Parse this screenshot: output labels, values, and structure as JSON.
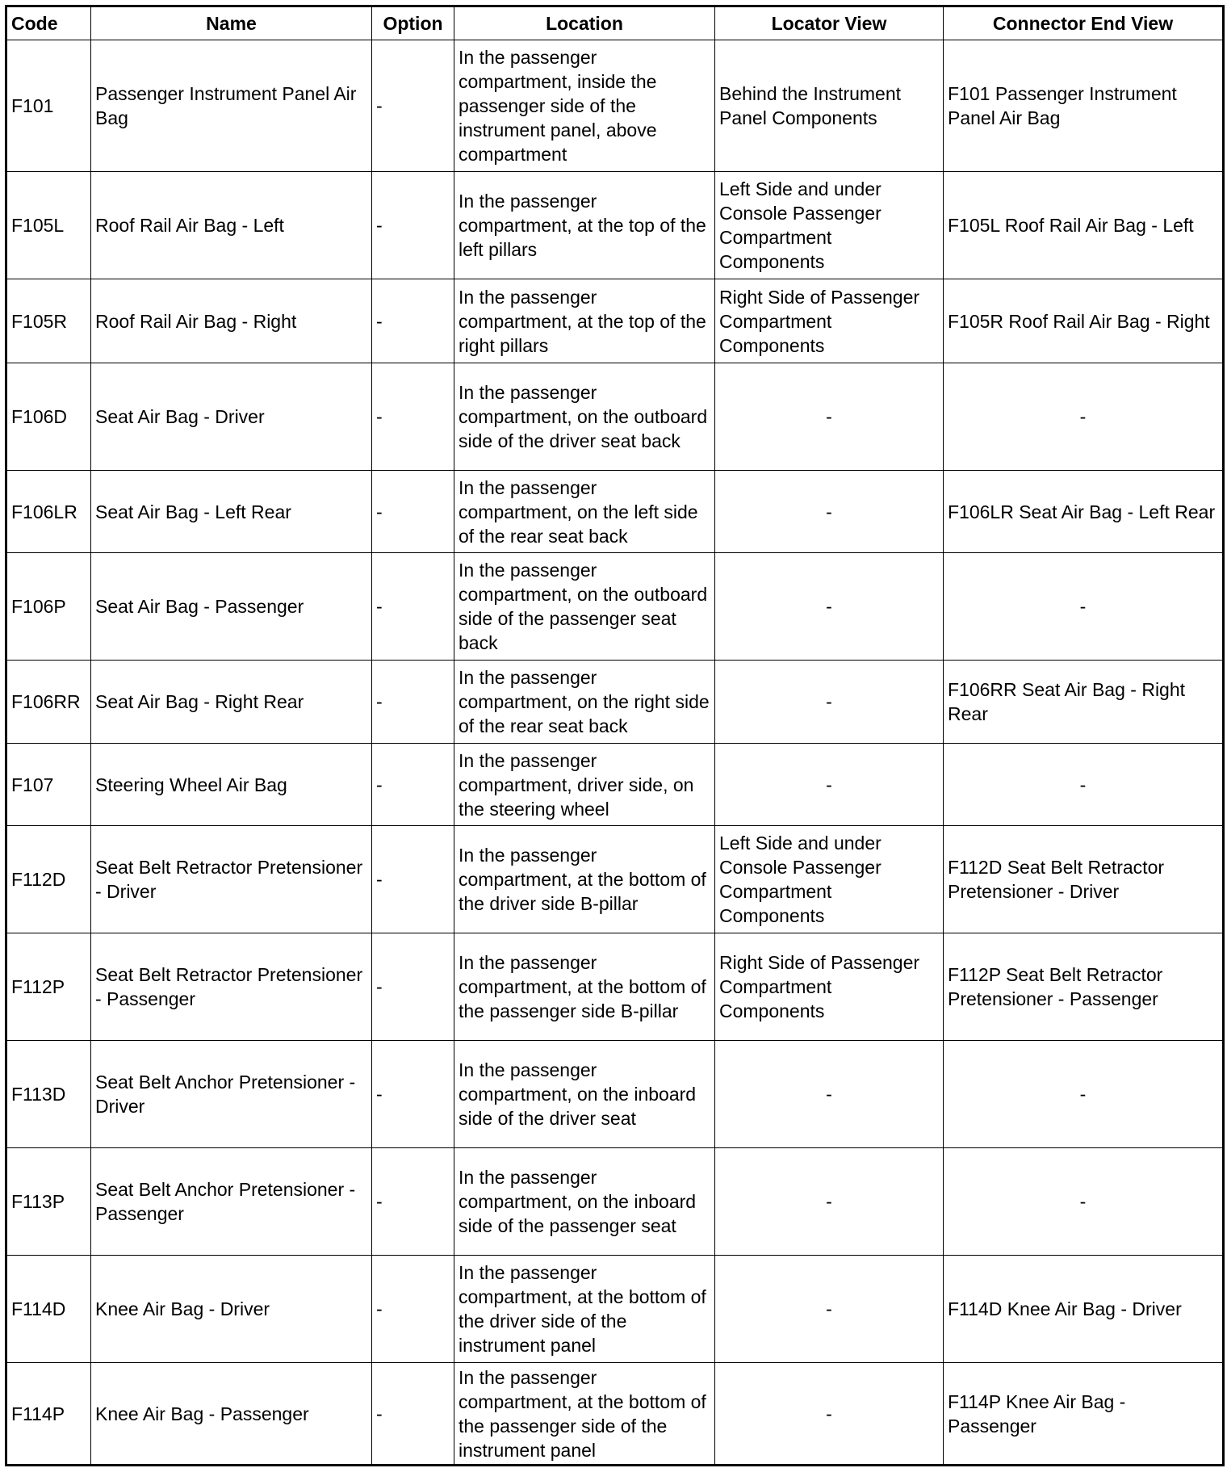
{
  "headers": [
    "Code",
    "Name",
    "Option",
    "Location",
    "Locator View",
    "Connector End View"
  ],
  "rows": [
    {
      "code": "F101",
      "name": "Passenger Instrument Panel Air Bag",
      "option": "-",
      "location": "In the passenger compartment, inside the passenger side of the instrument panel, above compartment",
      "locator": "Behind the Instrument Panel Components",
      "connector": "F101 Passenger Instrument Panel Air Bag"
    },
    {
      "code": "F105L",
      "name": "Roof Rail Air Bag - Left",
      "option": "-",
      "location": "In the passenger compartment, at the top of the left pillars",
      "locator": "Left Side and under Console Passenger Compartment Components",
      "connector": "F105L Roof Rail Air Bag - Left"
    },
    {
      "code": "F105R",
      "name": "Roof Rail Air Bag - Right",
      "option": "-",
      "location": "In the passenger compartment, at the top of the right pillars",
      "locator": "Right Side of Passenger Compartment Components",
      "connector": "F105R Roof Rail Air Bag - Right"
    },
    {
      "code": "F106D",
      "name": "Seat Air Bag - Driver",
      "option": "-",
      "location": "In the passenger compartment, on the outboard side of the driver seat back",
      "locator": "-",
      "connector": "-"
    },
    {
      "code": "F106LR",
      "name": "Seat Air Bag - Left Rear",
      "option": "-",
      "location": "In the passenger compartment, on the left side of the rear seat back",
      "locator": "-",
      "connector": "F106LR Seat Air Bag - Left Rear"
    },
    {
      "code": "F106P",
      "name": "Seat Air Bag - Passenger",
      "option": "-",
      "location": "In the passenger compartment, on the outboard side of the passenger seat back",
      "locator": "-",
      "connector": "-"
    },
    {
      "code": "F106RR",
      "name": "Seat Air Bag - Right Rear",
      "option": "-",
      "location": "In the passenger compartment, on the right side of the rear seat back",
      "locator": "-",
      "connector": "F106RR Seat Air Bag - Right Rear"
    },
    {
      "code": "F107",
      "name": "Steering Wheel Air Bag",
      "option": "-",
      "location": "In the passenger compartment, driver side, on the steering wheel",
      "locator": "-",
      "connector": "-"
    },
    {
      "code": "F112D",
      "name": "Seat Belt Retractor Pretensioner - Driver",
      "option": "-",
      "location": "In the passenger compartment, at the bottom of the driver side B-pillar",
      "locator": "Left Side and under Console Passenger Compartment Components",
      "connector": "F112D Seat Belt Retractor Pretensioner - Driver"
    },
    {
      "code": "F112P",
      "name": "Seat Belt Retractor Pretensioner - Passenger",
      "option": "-",
      "location": "In the passenger compartment, at the bottom of the passenger side B-pillar",
      "locator": "Right Side of Passenger Compartment Components",
      "connector": "F112P Seat Belt Retractor Pretensioner - Passenger"
    },
    {
      "code": "F113D",
      "name": "Seat Belt Anchor Pretensioner - Driver",
      "option": "-",
      "location": "In the passenger compartment, on the inboard side of the driver seat",
      "locator": "-",
      "connector": "-"
    },
    {
      "code": "F113P",
      "name": "Seat Belt Anchor Pretensioner - Passenger",
      "option": "-",
      "location": "In the passenger compartment, on the inboard side of the passenger seat",
      "locator": "-",
      "connector": "-"
    },
    {
      "code": "F114D",
      "name": "Knee Air Bag - Driver",
      "option": "-",
      "location": "In the passenger compartment, at the bottom of the driver side of the instrument panel",
      "locator": "-",
      "connector": "F114D Knee Air Bag - Driver"
    },
    {
      "code": "F114P",
      "name": "Knee Air Bag - Passenger",
      "option": "-",
      "location": "In the passenger compartment, at the bottom of the passenger side of the instrument panel",
      "locator": "-",
      "connector": "F114P Knee Air Bag - Passenger"
    }
  ]
}
